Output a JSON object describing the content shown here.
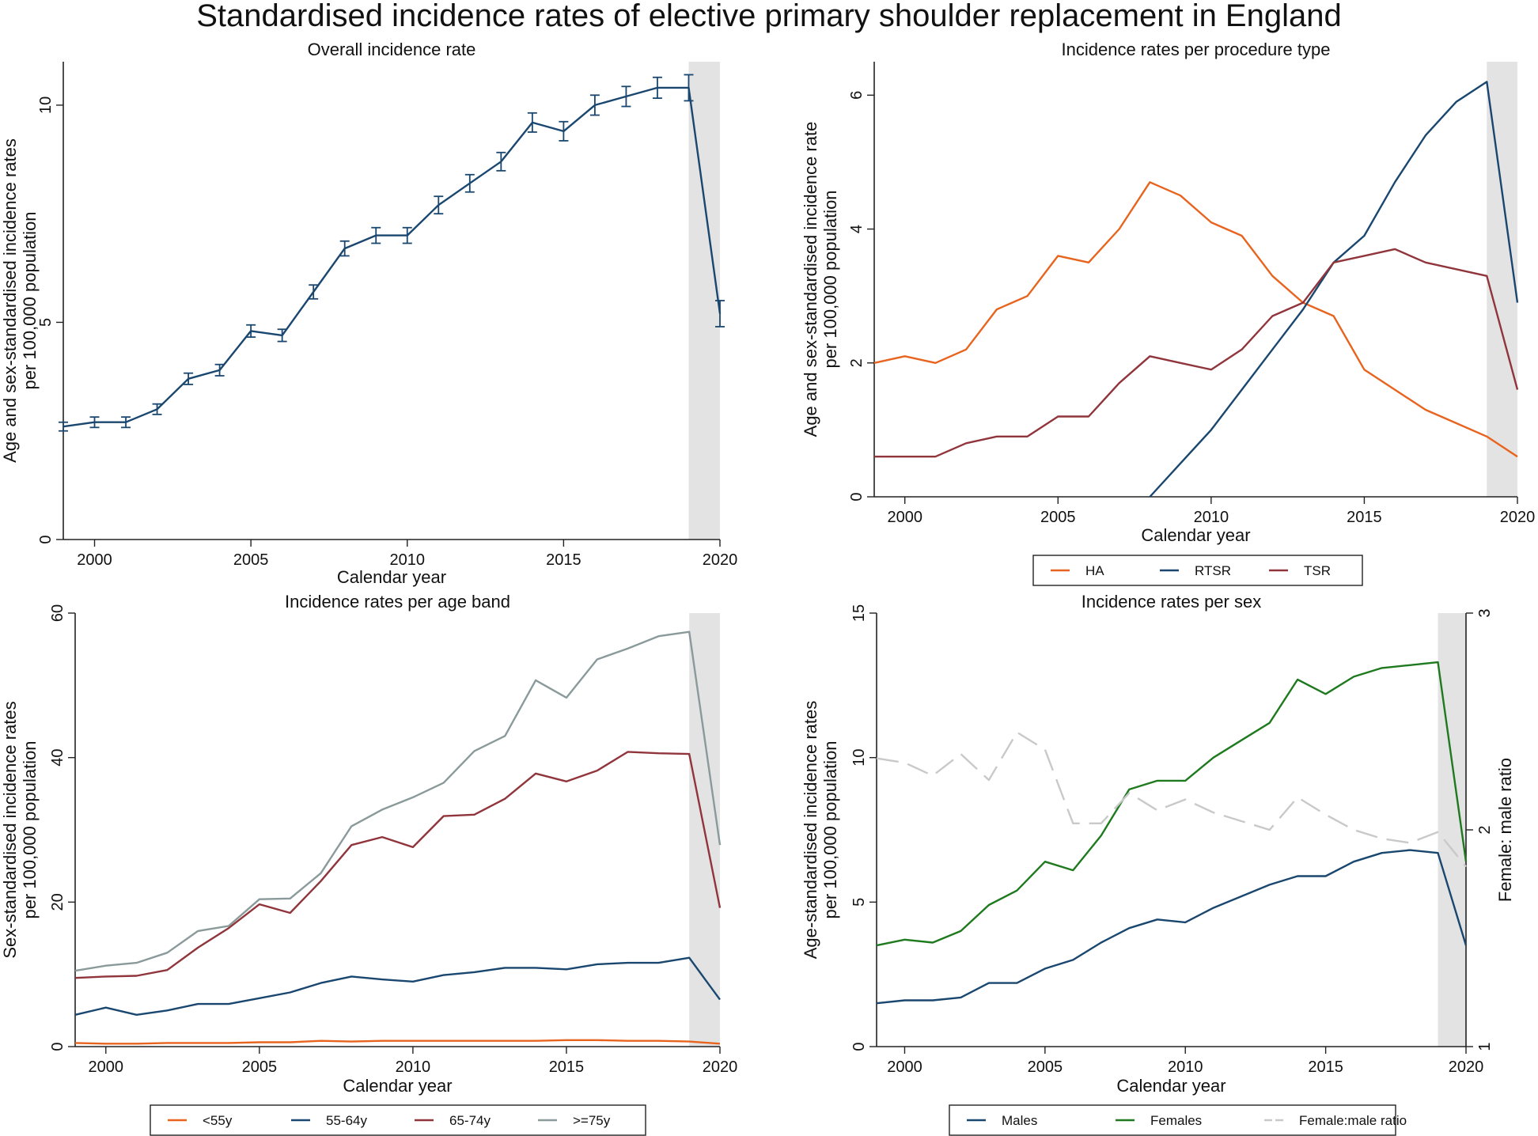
{
  "title": "Standardised incidence rates of elective primary shoulder replacement in England",
  "colors": {
    "navy": "#1a476f",
    "orange": "#e8641e",
    "maroon": "#90353b",
    "gray": "#8a9a9a",
    "green": "#1f7a1f",
    "ratio": "#c9c9c9",
    "shade": "#e3e3e3"
  },
  "chart_data": [
    {
      "type": "line",
      "title": "Overall incidence rate",
      "xlabel": "Calendar year",
      "ylabel": "Age and sex-standardised incidence rates",
      "ylabel2": "per 100,000 population",
      "xlim": [
        1999,
        2020
      ],
      "ylim": [
        0,
        11
      ],
      "xticks": [
        2000,
        2005,
        2010,
        2015,
        2020
      ],
      "yticks": [
        0,
        5,
        10
      ],
      "shaded_x": [
        2019,
        2020
      ],
      "error_bars": true,
      "x": [
        1999,
        2000,
        2001,
        2002,
        2003,
        2004,
        2005,
        2006,
        2007,
        2008,
        2009,
        2010,
        2011,
        2012,
        2013,
        2014,
        2015,
        2016,
        2017,
        2018,
        2019,
        2020
      ],
      "series": [
        {
          "color": "#1a476f",
          "values": [
            2.6,
            2.7,
            2.7,
            3.0,
            3.7,
            3.9,
            4.8,
            4.7,
            5.7,
            6.7,
            7.0,
            7.0,
            7.7,
            8.2,
            8.7,
            9.6,
            9.4,
            10.0,
            10.2,
            10.4,
            10.4,
            5.2
          ],
          "err": [
            0.1,
            0.12,
            0.12,
            0.12,
            0.13,
            0.13,
            0.14,
            0.14,
            0.16,
            0.17,
            0.18,
            0.18,
            0.2,
            0.2,
            0.21,
            0.22,
            0.22,
            0.23,
            0.23,
            0.24,
            0.3,
            0.3
          ]
        }
      ]
    },
    {
      "type": "line",
      "title": "Incidence rates per procedure type",
      "xlabel": "Calendar year",
      "ylabel": "Age and sex-standardised incidence rate",
      "ylabel2": "per 100,000 population",
      "xlim": [
        1999,
        2020
      ],
      "ylim": [
        0,
        6.5
      ],
      "xticks": [
        2000,
        2005,
        2010,
        2015,
        2020
      ],
      "yticks": [
        0,
        2,
        4,
        6
      ],
      "shaded_x": [
        2019,
        2020
      ],
      "x": [
        1999,
        2000,
        2001,
        2002,
        2003,
        2004,
        2005,
        2006,
        2007,
        2008,
        2009,
        2010,
        2011,
        2012,
        2013,
        2014,
        2015,
        2016,
        2017,
        2018,
        2019,
        2020
      ],
      "series": [
        {
          "name": "HA",
          "color": "#e8641e",
          "dash": "",
          "values": [
            2.0,
            2.1,
            2.0,
            2.2,
            2.8,
            3.0,
            3.6,
            3.5,
            4.0,
            4.7,
            4.5,
            4.1,
            3.9,
            3.3,
            2.9,
            2.7,
            1.9,
            1.6,
            1.3,
            1.1,
            0.9,
            0.6
          ]
        },
        {
          "name": "RTSR",
          "color": "#1a476f",
          "dash": "",
          "values": [
            null,
            null,
            null,
            null,
            null,
            null,
            null,
            null,
            null,
            0.0,
            0.5,
            1.0,
            1.6,
            2.2,
            2.8,
            3.5,
            3.9,
            4.7,
            5.4,
            5.9,
            6.2,
            2.9
          ]
        },
        {
          "name": "TSR",
          "color": "#90353b",
          "dash": "",
          "values": [
            0.6,
            0.6,
            0.6,
            0.8,
            0.9,
            0.9,
            1.2,
            1.2,
            1.7,
            2.1,
            2.0,
            1.9,
            2.2,
            2.7,
            2.9,
            3.5,
            3.6,
            3.7,
            3.5,
            3.4,
            3.3,
            1.6
          ]
        }
      ],
      "legend": "bottom"
    },
    {
      "type": "line",
      "title": "Incidence rates per age band",
      "xlabel": "Calendar year",
      "ylabel": "Sex-standardised incidence rates",
      "ylabel2": "per 100,000 population",
      "xlim": [
        1999,
        2020
      ],
      "ylim": [
        0,
        60
      ],
      "xticks": [
        2000,
        2005,
        2010,
        2015,
        2020
      ],
      "yticks": [
        0,
        20,
        40,
        60
      ],
      "shaded_x": [
        2019,
        2020
      ],
      "x": [
        1999,
        2000,
        2001,
        2002,
        2003,
        2004,
        2005,
        2006,
        2007,
        2008,
        2009,
        2010,
        2011,
        2012,
        2013,
        2014,
        2015,
        2016,
        2017,
        2018,
        2019,
        2020
      ],
      "series": [
        {
          "name": "<55y",
          "color": "#e8641e",
          "dash": "",
          "values": [
            0.5,
            0.4,
            0.4,
            0.5,
            0.5,
            0.5,
            0.6,
            0.6,
            0.8,
            0.7,
            0.8,
            0.8,
            0.8,
            0.8,
            0.8,
            0.8,
            0.9,
            0.9,
            0.8,
            0.8,
            0.7,
            0.4
          ]
        },
        {
          "name": "55-64y",
          "color": "#1a476f",
          "dash": "",
          "values": [
            4.4,
            5.4,
            4.4,
            5.0,
            5.9,
            5.9,
            6.7,
            7.5,
            8.8,
            9.7,
            9.3,
            9.0,
            9.9,
            10.3,
            10.9,
            10.9,
            10.7,
            11.4,
            11.6,
            11.6,
            12.3,
            6.5
          ]
        },
        {
          "name": "65-74y",
          "color": "#90353b",
          "dash": "",
          "values": [
            9.5,
            9.7,
            9.8,
            10.6,
            13.7,
            16.4,
            19.7,
            18.5,
            22.9,
            27.9,
            29.0,
            27.6,
            31.9,
            32.1,
            34.3,
            37.8,
            36.7,
            38.2,
            40.8,
            40.6,
            40.5,
            19.2
          ]
        },
        {
          "name": ">=75y",
          "color": "#8a9a9a",
          "dash": "",
          "values": [
            10.5,
            11.2,
            11.6,
            13.0,
            16.0,
            16.7,
            20.4,
            20.5,
            24.0,
            30.5,
            32.8,
            34.5,
            36.5,
            40.9,
            43.0,
            50.7,
            48.3,
            53.6,
            55.1,
            56.8,
            57.4,
            27.9
          ]
        }
      ],
      "legend": "bottom"
    },
    {
      "type": "line",
      "title": "Incidence rates per sex",
      "xlabel": "Calendar year",
      "ylabel": "Age-standardised incidence rates",
      "ylabel2": "per 100,000 population",
      "y2label": "Female: male ratio",
      "xlim": [
        1999,
        2020
      ],
      "ylim": [
        0,
        15
      ],
      "y2lim": [
        1,
        3
      ],
      "xticks": [
        2000,
        2005,
        2010,
        2015,
        2020
      ],
      "yticks": [
        0,
        5,
        10,
        15
      ],
      "y2ticks": [
        1,
        2,
        3
      ],
      "shaded_x": [
        2019,
        2020
      ],
      "x": [
        1999,
        2000,
        2001,
        2002,
        2003,
        2004,
        2005,
        2006,
        2007,
        2008,
        2009,
        2010,
        2011,
        2012,
        2013,
        2014,
        2015,
        2016,
        2017,
        2018,
        2019,
        2020
      ],
      "series": [
        {
          "name": "Males",
          "color": "#1a476f",
          "dash": "",
          "axis": "left",
          "values": [
            1.5,
            1.6,
            1.6,
            1.7,
            2.2,
            2.2,
            2.7,
            3.0,
            3.6,
            4.1,
            4.4,
            4.3,
            4.8,
            5.2,
            5.6,
            5.9,
            5.9,
            6.4,
            6.7,
            6.8,
            6.7,
            3.5
          ]
        },
        {
          "name": "Females",
          "color": "#1f7a1f",
          "dash": "",
          "axis": "left",
          "values": [
            3.5,
            3.7,
            3.6,
            4.0,
            4.9,
            5.4,
            6.4,
            6.1,
            7.3,
            8.9,
            9.2,
            9.2,
            10.0,
            10.6,
            11.2,
            12.7,
            12.2,
            12.8,
            13.1,
            13.2,
            13.3,
            6.4
          ]
        },
        {
          "name": "Female:male ratio",
          "color": "#c9c9c9",
          "dash": "28 12",
          "axis": "right",
          "values": [
            2.33,
            2.31,
            2.25,
            2.35,
            2.23,
            2.45,
            2.37,
            2.03,
            2.03,
            2.17,
            2.09,
            2.14,
            2.08,
            2.04,
            2.0,
            2.15,
            2.07,
            2.0,
            1.96,
            1.94,
            1.99,
            1.83
          ]
        }
      ],
      "legend": "bottom"
    }
  ]
}
